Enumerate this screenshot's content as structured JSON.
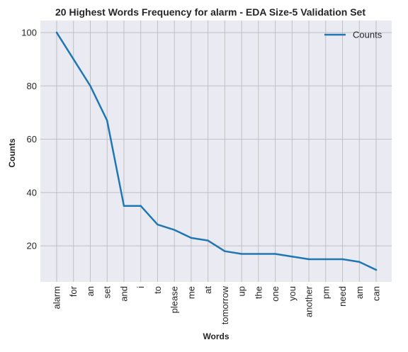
{
  "chart_data": {
    "type": "line",
    "title": "20 Highest Words Frequency for alarm - EDA Size-5 Validation Set",
    "xlabel": "Words",
    "ylabel": "Counts",
    "categories": [
      "alarm",
      "for",
      "an",
      "set",
      "and",
      "i",
      "to",
      "please",
      "me",
      "at",
      "tomorrow",
      "up",
      "the",
      "one",
      "you",
      "another",
      "pm",
      "need",
      "am",
      "can"
    ],
    "series": [
      {
        "name": "Counts",
        "values": [
          100,
          90,
          80,
          67,
          35,
          35,
          28,
          26,
          23,
          22,
          18,
          17,
          17,
          17,
          16,
          15,
          15,
          15,
          14,
          11
        ]
      }
    ],
    "yticks": [
      20,
      40,
      60,
      80,
      100
    ],
    "ylim": [
      6.5,
      104.5
    ],
    "grid": true,
    "legend_position": "top-right",
    "colors": {
      "line": "#1f77b4",
      "background": "#eaeaf2",
      "grid": "#c0c0c0",
      "text": "#262626"
    }
  }
}
